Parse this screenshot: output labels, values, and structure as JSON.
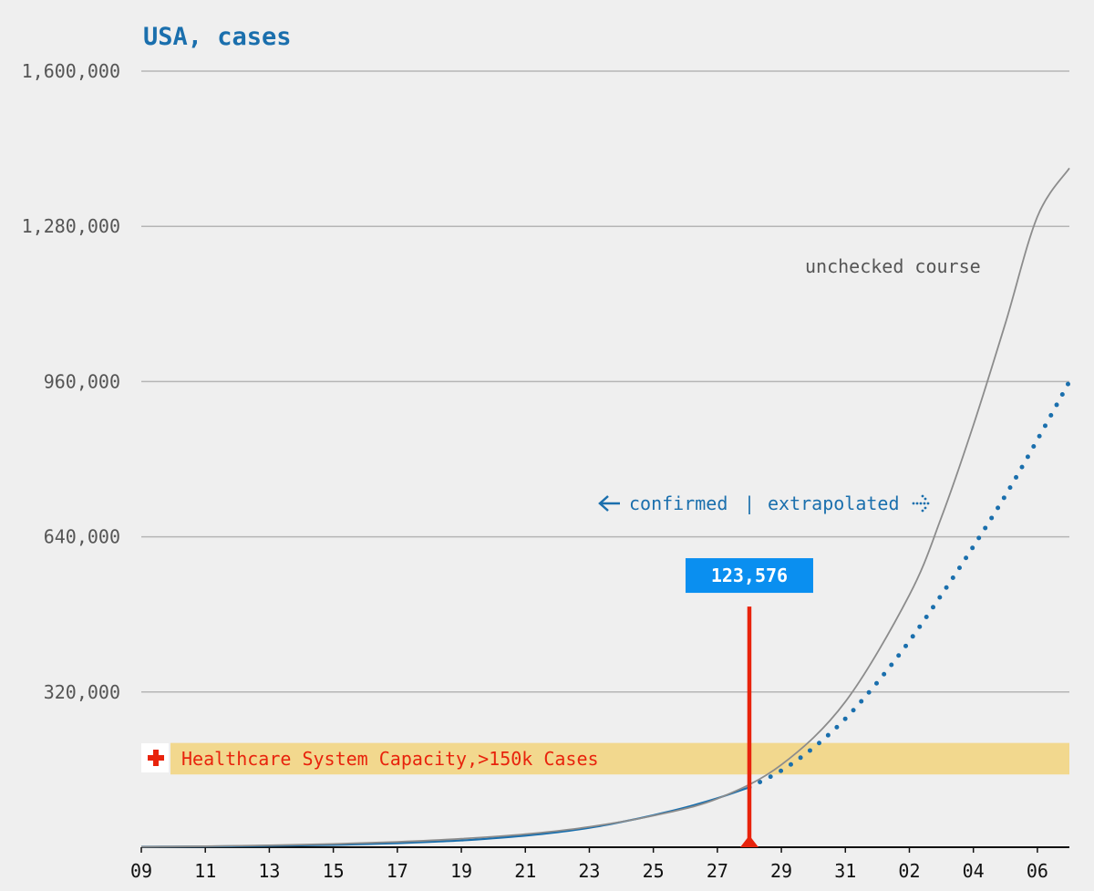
{
  "colors": {
    "background": "#efefef",
    "title": "#1a6fad",
    "confirmed": "#1a6fad",
    "extrapolated": "#1a6fad",
    "unchecked": "#8c8c8c",
    "marker": "#e8230c",
    "capacity_band": "#f2d88e",
    "callout": "#0a8ff0",
    "grid": "#b5b5b5"
  },
  "icons": {
    "capacity": "red-cross-icon",
    "left_arrow": "arrow-left-icon",
    "right_arrow": "dotted-arrow-right-icon"
  },
  "chart_data": {
    "type": "line",
    "title": "USA, cases",
    "xlabel": "",
    "ylabel": "",
    "ylim": [
      0,
      1600000
    ],
    "yticks": [
      {
        "value": 320000,
        "label": "320,000"
      },
      {
        "value": 640000,
        "label": "640,000"
      },
      {
        "value": 960000,
        "label": "960,000"
      },
      {
        "value": 1280000,
        "label": "1,280,000"
      },
      {
        "value": 1600000,
        "label": "1,600,000"
      }
    ],
    "x_range": [
      "2020-03-09",
      "2020-04-07"
    ],
    "xticks": [
      {
        "date": "2020-03-09",
        "label": "09"
      },
      {
        "date": "2020-03-11",
        "label": "11"
      },
      {
        "date": "2020-03-13",
        "label": "13"
      },
      {
        "date": "2020-03-15",
        "label": "15"
      },
      {
        "date": "2020-03-17",
        "label": "17"
      },
      {
        "date": "2020-03-19",
        "label": "19"
      },
      {
        "date": "2020-03-21",
        "label": "21"
      },
      {
        "date": "2020-03-23",
        "label": "23"
      },
      {
        "date": "2020-03-25",
        "label": "25"
      },
      {
        "date": "2020-03-27",
        "label": "27"
      },
      {
        "date": "2020-03-29",
        "label": "29"
      },
      {
        "date": "2020-03-31",
        "label": "31"
      },
      {
        "date": "2020-04-02",
        "label": "02"
      },
      {
        "date": "2020-04-04",
        "label": "04"
      },
      {
        "date": "2020-04-06",
        "label": "06"
      }
    ],
    "grid": true,
    "series": [
      {
        "name": "confirmed",
        "style": "solid",
        "x": [
          "2020-03-09",
          "2020-03-10",
          "2020-03-11",
          "2020-03-12",
          "2020-03-13",
          "2020-03-14",
          "2020-03-15",
          "2020-03-16",
          "2020-03-17",
          "2020-03-18",
          "2020-03-19",
          "2020-03-20",
          "2020-03-21",
          "2020-03-22",
          "2020-03-23",
          "2020-03-24",
          "2020-03-25",
          "2020-03-26",
          "2020-03-27",
          "2020-03-28"
        ],
        "y": [
          1000,
          1300,
          1700,
          2200,
          3000,
          3900,
          5000,
          6500,
          8500,
          11000,
          14000,
          18500,
          24000,
          31000,
          40000,
          52000,
          66000,
          82000,
          101000,
          123576
        ]
      },
      {
        "name": "extrapolated",
        "style": "dotted",
        "x": [
          "2020-03-28",
          "2020-03-29",
          "2020-03-30",
          "2020-03-31",
          "2020-04-01",
          "2020-04-02",
          "2020-04-03",
          "2020-04-04",
          "2020-04-05",
          "2020-04-06",
          "2020-04-07"
        ],
        "y": [
          123576,
          158000,
          205000,
          265000,
          340000,
          425000,
          520000,
          620000,
          725000,
          840000,
          960000
        ]
      },
      {
        "name": "unchecked course",
        "style": "solid-thin",
        "x": [
          "2020-03-09",
          "2020-03-11",
          "2020-03-13",
          "2020-03-15",
          "2020-03-17",
          "2020-03-19",
          "2020-03-21",
          "2020-03-23",
          "2020-03-25",
          "2020-03-27",
          "2020-03-29",
          "2020-03-31",
          "2020-04-02",
          "2020-04-03",
          "2020-04-04",
          "2020-04-05",
          "2020-04-06",
          "2020-04-07"
        ],
        "y": [
          800,
          2000,
          4000,
          6800,
          11000,
          17500,
          27000,
          42000,
          65000,
          100000,
          170000,
          300000,
          520000,
          680000,
          870000,
          1080000,
          1300000,
          1400000
        ]
      }
    ],
    "annotations": {
      "unchecked_label": "unchecked course",
      "legend": {
        "left": "confirmed",
        "separator": "|",
        "right": "extrapolated"
      },
      "capacity": {
        "label": "Healthcare System Capacity,>150k Cases",
        "ymin": 150000,
        "ymax": 215000
      },
      "marker": {
        "date": "2020-03-28",
        "value": 123576,
        "label": "123,576",
        "top_value": 500000
      }
    }
  }
}
